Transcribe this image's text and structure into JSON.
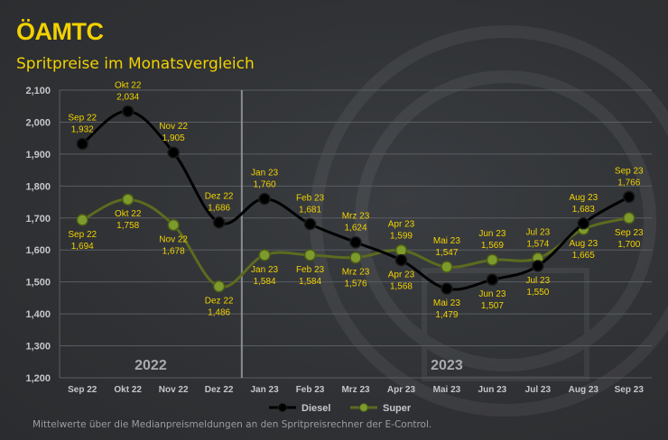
{
  "logo": "ÖAMTC",
  "title": "Spritpreise im Monatsvergleich",
  "footnote": "Mittelwerte über die Medianpreismeldungen an den Spritpreisrechner der E-Control.",
  "colors": {
    "accent": "#f2d200",
    "diesel": "#000000",
    "super": "#5c6b1f",
    "superMarker": "#7d9a2c",
    "grid": "#5a5d62",
    "axisText": "#c4c6ca",
    "yearText": "#a9abaf"
  },
  "chart_data": {
    "type": "line",
    "categories": [
      "Sep 22",
      "Okt 22",
      "Nov 22",
      "Dez 22",
      "Jan 23",
      "Feb 23",
      "Mrz 23",
      "Apr 23",
      "Mai 23",
      "Jun 23",
      "Jul 23",
      "Aug 23",
      "Sep 23"
    ],
    "ylim": [
      1.2,
      2.1
    ],
    "yticks": [
      "1,200",
      "1,300",
      "1,400",
      "1,500",
      "1,600",
      "1,700",
      "1,800",
      "1,900",
      "2,000",
      "2,100"
    ],
    "grid": true,
    "legend_position": "bottom",
    "year_labels": [
      {
        "text": "2022",
        "from": 0,
        "to": 3
      },
      {
        "text": "2023",
        "from": 4,
        "to": 12
      }
    ],
    "separator_after": 3,
    "series": [
      {
        "name": "Diesel",
        "values": [
          1.932,
          2.034,
          1.905,
          1.686,
          1.76,
          1.681,
          1.624,
          1.568,
          1.479,
          1.507,
          1.55,
          1.683,
          1.766
        ],
        "labels": [
          "1,932",
          "2,034",
          "1,905",
          "1,686",
          "1,760",
          "1,681",
          "1,624",
          "1,568",
          "1,479",
          "1,507",
          "1,550",
          "1,683",
          "1,766"
        ]
      },
      {
        "name": "Super",
        "values": [
          1.694,
          1.758,
          1.678,
          1.486,
          1.584,
          1.584,
          1.576,
          1.599,
          1.547,
          1.569,
          1.574,
          1.665,
          1.7
        ],
        "labels": [
          "1,694",
          "1,758",
          "1,678",
          "1,486",
          "1,584",
          "1,584",
          "1,576",
          "1,599",
          "1,547",
          "1,569",
          "1,574",
          "1,665",
          "1,700"
        ]
      }
    ]
  }
}
